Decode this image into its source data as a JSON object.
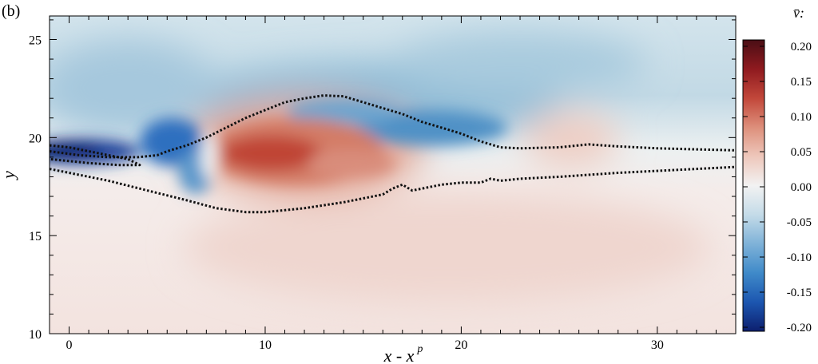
{
  "panel_label": "(b)",
  "chart_data": {
    "type": "heatmap",
    "title": "",
    "xlabel": "x - x",
    "xlabel_superscript": "p",
    "ylabel": "y",
    "xlim": [
      -1,
      34
    ],
    "ylim": [
      10,
      26.2
    ],
    "x_ticks": [
      0,
      10,
      20,
      30
    ],
    "y_ticks": [
      10,
      15,
      20,
      25
    ],
    "grid": false,
    "colorbar": {
      "label": "v̄:",
      "range": [
        -0.2,
        0.2
      ],
      "ticks": [
        "0.20",
        "0.15",
        "0.10",
        "0.05",
        "0.00",
        "-0.05",
        "-0.10",
        "-0.15",
        "-0.20"
      ],
      "colormap": [
        "#0d1f6e",
        "#1c56b0",
        "#3f8ac9",
        "#7fb2d8",
        "#c4dbe8",
        "#f2f2f2",
        "#eec7bb",
        "#dd8f7b",
        "#c2473a",
        "#8f1a1f",
        "#4a0e15"
      ]
    },
    "field_regions": [
      {
        "name": "strong-negative-jet",
        "x": [
          -1,
          3.5
        ],
        "y": [
          18.4,
          19.8
        ],
        "value": -0.2
      },
      {
        "name": "negative-shoulder",
        "x": [
          3,
          7
        ],
        "y": [
          17.5,
          21
        ],
        "value": -0.12
      },
      {
        "name": "negative-upper-band",
        "x": [
          6,
          23
        ],
        "y": [
          20,
          23.5
        ],
        "value": -0.08
      },
      {
        "name": "upper-background",
        "x": [
          -1,
          34
        ],
        "y": [
          21,
          26.2
        ],
        "value": -0.04
      },
      {
        "name": "positive-core",
        "x": [
          7.5,
          16
        ],
        "y": [
          17.5,
          21.5
        ],
        "value": 0.13
      },
      {
        "name": "weak-positive-bump",
        "x": [
          24,
          28
        ],
        "y": [
          18,
          21
        ],
        "value": 0.02
      },
      {
        "name": "lower-background",
        "x": [
          -1,
          34
        ],
        "y": [
          10,
          17
        ],
        "value": 0.02
      }
    ],
    "contours": [
      {
        "name": "upper-contour",
        "x": [
          -1,
          0.5,
          2,
          3.5,
          4.5,
          5,
          6,
          7,
          8,
          9,
          10,
          11,
          12,
          13,
          14,
          15,
          16,
          17,
          18,
          19,
          20,
          21,
          22,
          23,
          25,
          26.5,
          28,
          30,
          32,
          34
        ],
        "y": [
          19.3,
          19.1,
          19.0,
          19.0,
          19.1,
          19.3,
          19.6,
          20.0,
          20.5,
          21.0,
          21.4,
          21.8,
          22.0,
          22.15,
          22.1,
          21.8,
          21.5,
          21.2,
          20.8,
          20.5,
          20.2,
          19.8,
          19.5,
          19.45,
          19.5,
          19.65,
          19.55,
          19.45,
          19.4,
          19.35
        ]
      },
      {
        "name": "inner-jet-contour",
        "x": [
          -1,
          0,
          1,
          2,
          3,
          3.6,
          2.5,
          1,
          0,
          -1
        ],
        "y": [
          19.6,
          19.5,
          19.3,
          19.1,
          18.9,
          18.6,
          18.6,
          18.7,
          18.8,
          18.9
        ]
      },
      {
        "name": "lower-contour",
        "x": [
          -1,
          0,
          2,
          4,
          6,
          7.5,
          9,
          10,
          12,
          14,
          15,
          16,
          16.5,
          17,
          17.5,
          18,
          19,
          20,
          21,
          21.5,
          22,
          23,
          25,
          28,
          30,
          32,
          34
        ],
        "y": [
          18.4,
          18.2,
          17.8,
          17.3,
          16.8,
          16.4,
          16.2,
          16.2,
          16.4,
          16.7,
          16.9,
          17.1,
          17.4,
          17.6,
          17.3,
          17.4,
          17.6,
          17.7,
          17.7,
          17.9,
          17.8,
          17.9,
          18.0,
          18.2,
          18.3,
          18.4,
          18.5
        ]
      }
    ]
  }
}
